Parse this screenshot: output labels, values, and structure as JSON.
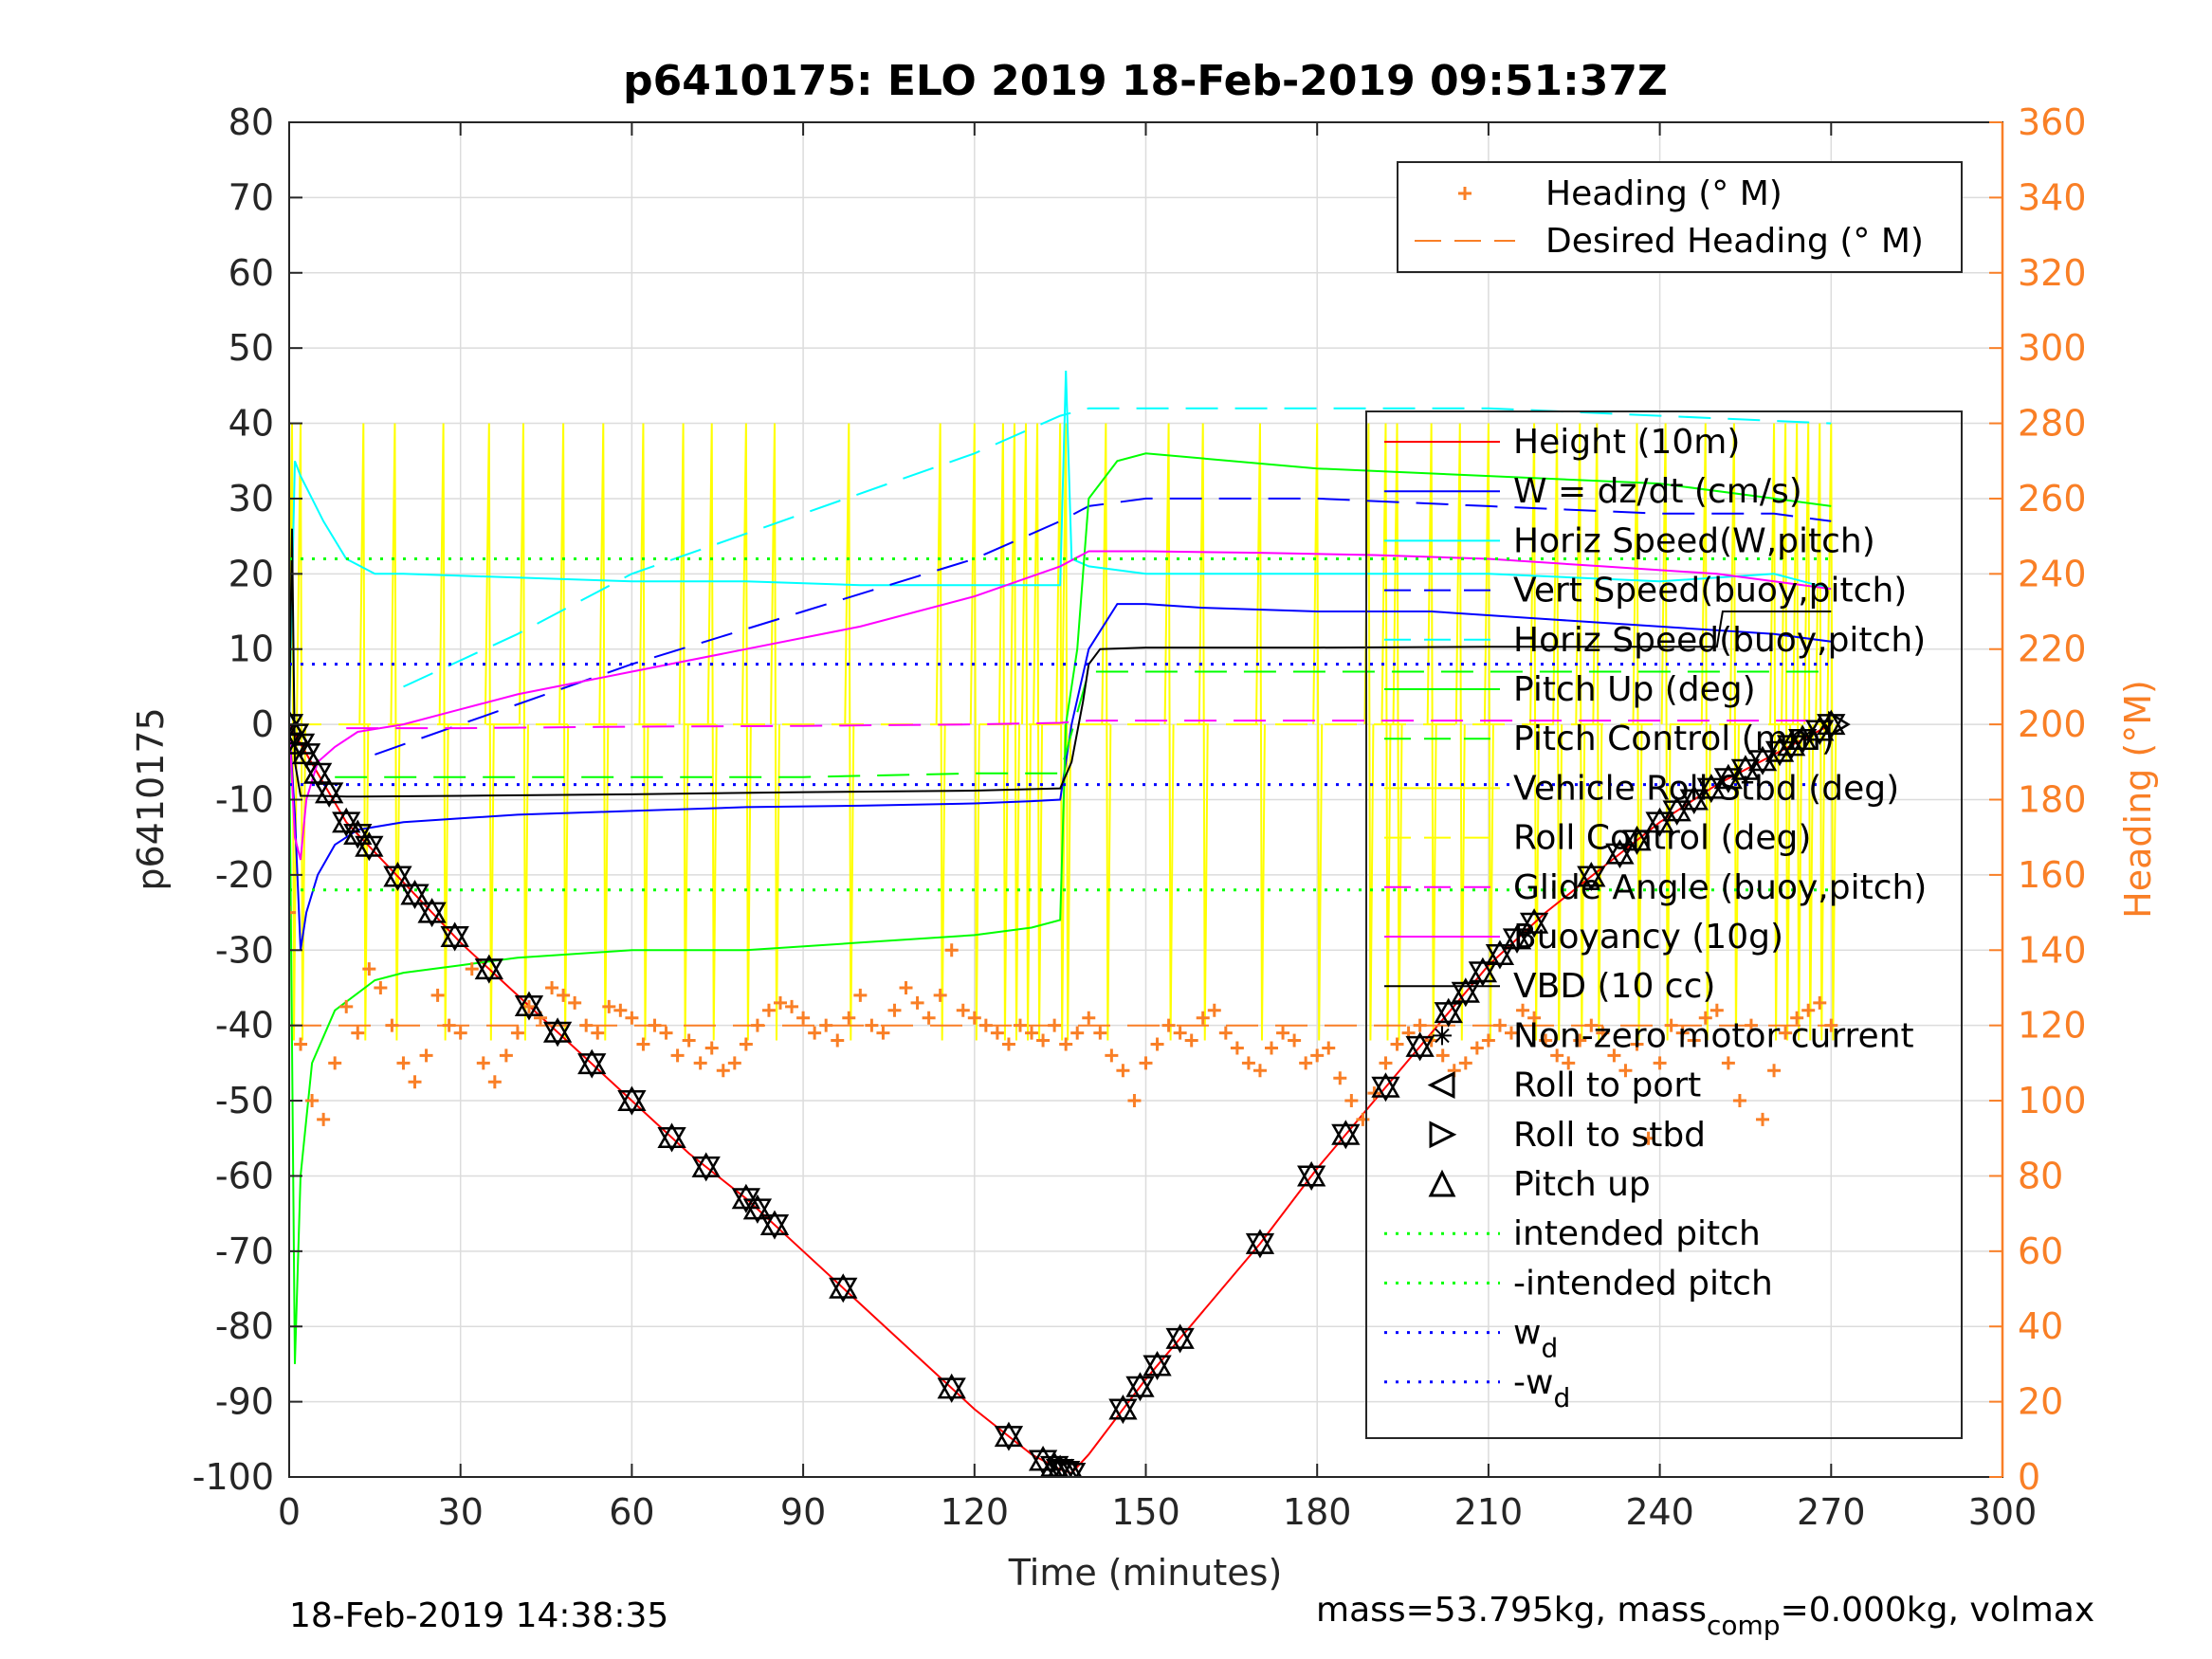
{
  "chart_data": {
    "type": "line",
    "title": "p6410175: ELO 2019 18-Feb-2019 09:51:37Z",
    "xlabel": "Time (minutes)",
    "ylabel": "p6410175",
    "y2label": "Heading (°M)",
    "xlim": [
      0,
      300
    ],
    "ylim": [
      -100,
      80
    ],
    "y2lim": [
      0,
      360
    ],
    "x_ticks": [
      "0",
      "30",
      "60",
      "90",
      "120",
      "150",
      "180",
      "210",
      "240",
      "270",
      "300"
    ],
    "y_ticks": [
      "80",
      "70",
      "60",
      "50",
      "40",
      "30",
      "20",
      "10",
      "0",
      "-10",
      "-20",
      "-30",
      "-40",
      "-50",
      "-60",
      "-70",
      "-80",
      "-90",
      "-100"
    ],
    "y2_ticks": [
      "360",
      "340",
      "320",
      "300",
      "280",
      "260",
      "240",
      "220",
      "200",
      "180",
      "160",
      "140",
      "120",
      "100",
      "80",
      "60",
      "40",
      "20",
      "0"
    ],
    "grid": true,
    "footer_left": "18-Feb-2019 14:38:35",
    "footer_right": "mass=53.795kg, mass",
    "footer_right_sub": "comp",
    "footer_right_tail": "=0.000kg, volmax",
    "legend_top": [
      {
        "label": "Heading (° M)",
        "color": "#F97F26",
        "style": "plus"
      },
      {
        "label": "Desired Heading (° M)",
        "color": "#F97F26",
        "style": "dash"
      }
    ],
    "legend_main": [
      {
        "label": "Height (10m)",
        "color": "#ff0000",
        "style": "solid"
      },
      {
        "label": "W = dz/dt (cm/s)",
        "color": "#0000ff",
        "style": "solid"
      },
      {
        "label": "Horiz Speed(W,pitch)",
        "color": "#00ffff",
        "style": "solid"
      },
      {
        "label": "Vert Speed(buoy,pitch)",
        "color": "#0000ff",
        "style": "dash"
      },
      {
        "label": "Horiz Speed(buoy,pitch)",
        "color": "#00ffff",
        "style": "dash"
      },
      {
        "label": "Pitch Up (deg)",
        "color": "#00ff00",
        "style": "solid"
      },
      {
        "label": "Pitch Control (mm)",
        "color": "#00ff00",
        "style": "dash"
      },
      {
        "label": "Vehicle Roll Stbd (deg)",
        "color": "#ffff00",
        "style": "solid"
      },
      {
        "label": "Roll Control (deg)",
        "color": "#ffff00",
        "style": "dash"
      },
      {
        "label": "Glide Angle (buoy,pitch)",
        "color": "#ff00ff",
        "style": "dash"
      },
      {
        "label": "Buoyancy (10g)",
        "color": "#ff00ff",
        "style": "solid"
      },
      {
        "label": "VBD (10 cc)",
        "color": "#000000",
        "style": "solid"
      },
      {
        "label": "Non-zero motor current",
        "color": "#000000",
        "style": "star"
      },
      {
        "label": "Roll to port",
        "color": "#000000",
        "style": "tri-left"
      },
      {
        "label": "Roll to stbd",
        "color": "#000000",
        "style": "tri-right"
      },
      {
        "label": "Pitch up",
        "color": "#000000",
        "style": "tri-up"
      },
      {
        "label": "intended pitch",
        "color": "#00ff00",
        "style": "dot"
      },
      {
        "label": "-intended pitch",
        "color": "#00ff00",
        "style": "dot"
      },
      {
        "label": "w",
        "sub": "d",
        "color": "#0000ff",
        "style": "dot"
      },
      {
        "label": "-w",
        "sub": "d",
        "color": "#0000ff",
        "style": "dot"
      }
    ],
    "series": [
      {
        "name": "Height (10m)",
        "color": "#ff0000",
        "style": "solid",
        "x": [
          0,
          10,
          20,
          30,
          40,
          50,
          60,
          70,
          80,
          90,
          100,
          110,
          120,
          130,
          135,
          137,
          140,
          150,
          160,
          170,
          180,
          190,
          200,
          210,
          220,
          230,
          240,
          250,
          260,
          270
        ],
        "y": [
          0,
          -13,
          -21,
          -29,
          -36,
          -43,
          -50,
          -57,
          -63,
          -70,
          -77,
          -84,
          -91,
          -97,
          -99,
          -99.5,
          -97,
          -87,
          -78,
          -69,
          -59,
          -50,
          -41,
          -32,
          -25,
          -19,
          -13,
          -8,
          -4,
          0
        ]
      },
      {
        "name": "W = dz/dt (cm/s)",
        "color": "#0000ff",
        "style": "solid",
        "x": [
          0,
          1,
          2,
          3,
          5,
          8,
          12,
          20,
          30,
          40,
          60,
          80,
          100,
          120,
          130,
          135,
          137,
          140,
          145,
          150,
          160,
          180,
          200,
          220,
          240,
          260,
          270
        ],
        "y": [
          0,
          -12,
          -30,
          -25,
          -20,
          -16,
          -14,
          -13,
          -12.5,
          -12,
          -11.5,
          -11,
          -10.8,
          -10.5,
          -10.2,
          -10,
          0,
          10,
          16,
          16,
          15.5,
          15,
          15,
          14,
          13,
          12,
          11
        ]
      },
      {
        "name": "Horiz Speed(W,pitch)",
        "color": "#00ffff",
        "style": "solid",
        "x": [
          0,
          1,
          2,
          4,
          6,
          10,
          15,
          20,
          40,
          60,
          80,
          100,
          120,
          135,
          136,
          137,
          140,
          150,
          180,
          210,
          240,
          260,
          270
        ],
        "y": [
          0,
          35,
          33,
          30,
          27,
          22,
          20,
          20,
          19.5,
          19,
          19,
          18.5,
          18.5,
          18.5,
          47,
          22,
          21,
          20,
          20,
          20,
          19,
          20,
          18
        ]
      },
      {
        "name": "Vert Speed(buoy,pitch)",
        "color": "#0000ff",
        "style": "dash",
        "x": [
          15,
          30,
          60,
          90,
          120,
          135,
          140,
          150,
          180,
          210,
          240,
          260,
          270
        ],
        "y": [
          -4,
          0,
          8,
          15,
          22,
          27,
          29,
          30,
          30,
          29,
          28,
          28,
          27
        ]
      },
      {
        "name": "Horiz Speed(buoy,pitch)",
        "color": "#00ffff",
        "style": "dash",
        "x": [
          20,
          40,
          60,
          90,
          120,
          135,
          140,
          150,
          180,
          210,
          240,
          270
        ],
        "y": [
          5,
          12,
          20,
          28,
          36,
          41,
          42,
          42,
          42,
          42,
          41,
          40
        ]
      },
      {
        "name": "Pitch Up (deg)",
        "color": "#00ff00",
        "style": "solid",
        "x": [
          0,
          1,
          2,
          4,
          8,
          15,
          20,
          30,
          40,
          60,
          80,
          100,
          120,
          130,
          135,
          136,
          138,
          140,
          145,
          150,
          180,
          210,
          240,
          260,
          270
        ],
        "y": [
          0,
          -85,
          -60,
          -45,
          -38,
          -34,
          -33,
          -32,
          -31,
          -30,
          -30,
          -29,
          -28,
          -27,
          -26,
          0,
          10,
          30,
          35,
          36,
          34,
          33,
          32,
          30,
          29
        ]
      },
      {
        "name": "Pitch Control (mm)",
        "color": "#00ff00",
        "style": "dash",
        "x": [
          8,
          30,
          60,
          90,
          120,
          135,
          140,
          150,
          180,
          210,
          240,
          270
        ],
        "y": [
          -7,
          -7,
          -7,
          -7,
          -6.5,
          -6.5,
          7,
          7,
          7,
          7,
          7,
          7
        ]
      },
      {
        "name": "Roll Control (deg)",
        "color": "#ffff00",
        "style": "dash",
        "x": [
          0,
          30,
          60,
          90,
          120,
          135,
          140,
          150,
          180,
          210,
          240,
          270
        ],
        "y": [
          0,
          0,
          0,
          0,
          0,
          0,
          0,
          0,
          0,
          0,
          0,
          0
        ]
      },
      {
        "name": "Glide Angle (buoy,pitch)",
        "color": "#ff00ff",
        "style": "dash",
        "x": [
          10,
          30,
          60,
          90,
          120,
          135,
          140,
          150,
          180,
          210,
          240,
          270
        ],
        "y": [
          -0.5,
          -0.5,
          -0.3,
          -0.2,
          0,
          0.2,
          0.5,
          0.5,
          0.5,
          0.5,
          0.5,
          0.5
        ]
      },
      {
        "name": "Buoyancy (10g)",
        "color": "#ff00ff",
        "style": "solid",
        "x": [
          0,
          1,
          2,
          3,
          5,
          8,
          12,
          20,
          30,
          40,
          60,
          80,
          100,
          120,
          135,
          140,
          150,
          170,
          190,
          210,
          230,
          250,
          260,
          270
        ],
        "y": [
          0,
          -15,
          -18,
          -10,
          -5,
          -3,
          -1,
          0,
          2,
          4,
          7,
          10,
          13,
          17,
          21,
          23,
          23,
          22.8,
          22.5,
          22,
          21,
          20,
          19,
          18
        ]
      },
      {
        "name": "VBD (10 cc)",
        "color": "#000000",
        "style": "solid",
        "x": [
          0,
          0.5,
          1,
          2,
          5,
          10,
          30,
          60,
          90,
          120,
          135,
          137,
          139,
          140,
          142,
          150,
          180,
          210,
          240,
          250,
          251,
          260,
          270
        ],
        "y": [
          0,
          26,
          -5,
          -9.5,
          -9.5,
          -9.6,
          -9.5,
          -9.3,
          -9,
          -8.8,
          -8.5,
          -5,
          3,
          8,
          10,
          10.2,
          10.2,
          10.3,
          10.3,
          10.3,
          15,
          15,
          15
        ]
      },
      {
        "name": "intended pitch",
        "color": "#00ff00",
        "style": "dot",
        "x": [
          0,
          270
        ],
        "y": [
          22,
          22
        ]
      },
      {
        "name": "-intended pitch",
        "color": "#00ff00",
        "style": "dot",
        "x": [
          0,
          270
        ],
        "y": [
          -22,
          -22
        ]
      },
      {
        "name": "w_d",
        "color": "#0000ff",
        "style": "dot",
        "x": [
          0,
          270
        ],
        "y": [
          8,
          8
        ]
      },
      {
        "name": "-w_d",
        "color": "#0000ff",
        "style": "dot",
        "x": [
          0,
          270
        ],
        "y": [
          -8,
          -8
        ]
      },
      {
        "name": "Desired Heading (° M)",
        "color": "#F97F26",
        "style": "dash",
        "axis": "right",
        "x": [
          0,
          270
        ],
        "y": [
          120,
          120
        ]
      }
    ],
    "roll_spikes": {
      "name": "Vehicle Roll Stbd (deg)",
      "color": "#ffff00",
      "x": [
        0.5,
        2,
        13,
        18.5,
        27,
        35,
        41,
        48,
        55,
        62,
        69,
        74,
        80,
        85,
        98,
        114,
        120,
        125,
        127,
        129,
        131,
        135,
        136,
        143,
        154,
        160,
        170,
        180,
        189,
        192,
        194,
        200,
        205,
        210,
        218,
        222,
        226,
        229,
        236,
        241,
        248,
        253,
        260,
        262,
        264,
        266,
        268,
        270
      ]
    },
    "heading": {
      "name": "Heading (° M)",
      "color": "#F97F26",
      "axis": "right",
      "x": [
        0,
        2,
        4,
        6,
        8,
        10,
        12,
        14,
        16,
        18,
        20,
        22,
        24,
        26,
        28,
        30,
        32,
        34,
        36,
        38,
        40,
        42,
        44,
        46,
        48,
        50,
        52,
        54,
        56,
        58,
        60,
        62,
        64,
        66,
        68,
        70,
        72,
        74,
        76,
        78,
        80,
        82,
        84,
        86,
        88,
        90,
        92,
        94,
        96,
        98,
        100,
        102,
        104,
        106,
        108,
        110,
        112,
        114,
        116,
        118,
        120,
        122,
        124,
        126,
        128,
        130,
        132,
        134,
        136,
        138,
        140,
        142,
        144,
        146,
        148,
        150,
        152,
        154,
        156,
        158,
        160,
        162,
        164,
        166,
        168,
        170,
        172,
        174,
        176,
        178,
        180,
        182,
        184,
        186,
        188,
        190,
        192,
        194,
        196,
        198,
        200,
        202,
        204,
        206,
        208,
        210,
        212,
        214,
        216,
        218,
        220,
        222,
        224,
        226,
        228,
        230,
        232,
        234,
        236,
        238,
        240,
        242,
        244,
        246,
        248,
        250,
        252,
        254,
        256,
        258,
        260,
        262,
        264,
        266,
        268,
        270
      ],
      "y": [
        150,
        115,
        100,
        95,
        110,
        125,
        118,
        135,
        130,
        120,
        110,
        105,
        112,
        128,
        120,
        118,
        135,
        110,
        105,
        112,
        118,
        125,
        122,
        130,
        128,
        126,
        120,
        118,
        125,
        124,
        122,
        115,
        120,
        118,
        112,
        116,
        110,
        114,
        108,
        110,
        115,
        120,
        124,
        126,
        125,
        122,
        118,
        120,
        116,
        122,
        128,
        120,
        118,
        124,
        130,
        126,
        122,
        128,
        140,
        124,
        122,
        120,
        118,
        115,
        120,
        118,
        116,
        120,
        115,
        118,
        122,
        118,
        112,
        108,
        100,
        110,
        115,
        120,
        118,
        116,
        122,
        124,
        118,
        114,
        110,
        108,
        114,
        118,
        116,
        110,
        112,
        114,
        106,
        100,
        95,
        102,
        110,
        115,
        118,
        120,
        116,
        112,
        108,
        110,
        114,
        116,
        120,
        118,
        124,
        122,
        116,
        112,
        110,
        116,
        120,
        118,
        112,
        108,
        115,
        90,
        110,
        120,
        118,
        116,
        122,
        124,
        110,
        100,
        120,
        95,
        108,
        118,
        122,
        124,
        126,
        120
      ]
    },
    "events": {
      "pitch_time": [
        0,
        1,
        2,
        3,
        5,
        7,
        10,
        12,
        14,
        19,
        22,
        25,
        29,
        35,
        42,
        47,
        53,
        60,
        67,
        73,
        80,
        82,
        85,
        97,
        116,
        126,
        132,
        134,
        135,
        136,
        137,
        146,
        149,
        152,
        156,
        170,
        179,
        185,
        192,
        198,
        203,
        206,
        209,
        212,
        215,
        218,
        228,
        233,
        236,
        240,
        243,
        246,
        249,
        252,
        255,
        258,
        261,
        263,
        265,
        268,
        270
      ]
    }
  }
}
